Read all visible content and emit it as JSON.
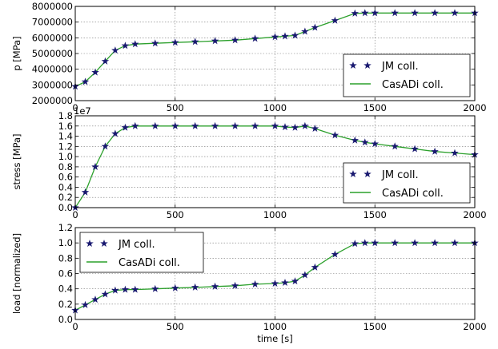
{
  "colors": {
    "marker": "#191970",
    "line": "#2ca02c",
    "grid": "#777777",
    "frame": "#000000"
  },
  "chart_data": [
    {
      "type": "line",
      "ylabel": "p [MPa]",
      "xlabel": "",
      "xlim": [
        0,
        2000
      ],
      "ylim": [
        2000000,
        8000000
      ],
      "xticks": [
        0,
        500,
        1000,
        1500,
        2000
      ],
      "yticks": [
        2000000,
        3000000,
        4000000,
        5000000,
        6000000,
        7000000,
        8000000
      ],
      "ytick_labels": [
        "2000000",
        "3000000",
        "4000000",
        "5000000",
        "6000000",
        "7000000",
        "8000000"
      ],
      "offset_text": "",
      "grid": true,
      "legend": "right",
      "x": [
        0,
        50,
        100,
        150,
        200,
        250,
        300,
        400,
        500,
        600,
        700,
        800,
        900,
        1000,
        1050,
        1100,
        1150,
        1200,
        1300,
        1400,
        1450,
        1500,
        1600,
        1700,
        1800,
        1900,
        2000
      ],
      "series": [
        {
          "name": "JM coll.",
          "style": "markers",
          "values": [
            2900000,
            3200000,
            3800000,
            4500000,
            5200000,
            5500000,
            5600000,
            5650000,
            5700000,
            5750000,
            5800000,
            5850000,
            5950000,
            6050000,
            6100000,
            6150000,
            6400000,
            6650000,
            7100000,
            7550000,
            7580000,
            7580000,
            7580000,
            7580000,
            7580000,
            7580000,
            7580000
          ]
        },
        {
          "name": "CasADi coll.",
          "style": "line",
          "values": [
            2900000,
            3200000,
            3800000,
            4500000,
            5200000,
            5500000,
            5600000,
            5650000,
            5700000,
            5750000,
            5800000,
            5850000,
            5950000,
            6050000,
            6100000,
            6150000,
            6400000,
            6650000,
            7100000,
            7550000,
            7580000,
            7580000,
            7580000,
            7580000,
            7580000,
            7580000,
            7580000
          ]
        }
      ]
    },
    {
      "type": "line",
      "ylabel": "stress [MPa]",
      "xlabel": "",
      "xlim": [
        0,
        2000
      ],
      "ylim": [
        0,
        1.8
      ],
      "xticks": [
        0,
        500,
        1000,
        1500,
        2000
      ],
      "yticks": [
        0,
        0.2,
        0.4,
        0.6,
        0.8,
        1.0,
        1.2,
        1.4,
        1.6,
        1.8
      ],
      "ytick_labels": [
        "0.0",
        "0.2",
        "0.4",
        "0.6",
        "0.8",
        "1.0",
        "1.2",
        "1.4",
        "1.6",
        "1.8"
      ],
      "offset_text": "1e7",
      "grid": true,
      "legend": "lower-right",
      "x": [
        0,
        50,
        100,
        150,
        200,
        250,
        300,
        400,
        500,
        600,
        700,
        800,
        900,
        1000,
        1050,
        1100,
        1150,
        1200,
        1300,
        1400,
        1450,
        1500,
        1600,
        1700,
        1800,
        1900,
        2000
      ],
      "series": [
        {
          "name": "JM coll.",
          "style": "markers",
          "values": [
            0.0,
            0.3,
            0.8,
            1.2,
            1.45,
            1.57,
            1.6,
            1.6,
            1.6,
            1.6,
            1.6,
            1.6,
            1.6,
            1.6,
            1.58,
            1.57,
            1.6,
            1.55,
            1.42,
            1.32,
            1.28,
            1.25,
            1.2,
            1.15,
            1.1,
            1.07,
            1.04
          ]
        },
        {
          "name": "CasADi coll.",
          "style": "line",
          "values": [
            0.0,
            0.3,
            0.8,
            1.2,
            1.45,
            1.57,
            1.6,
            1.6,
            1.6,
            1.6,
            1.6,
            1.6,
            1.6,
            1.6,
            1.58,
            1.57,
            1.6,
            1.55,
            1.42,
            1.32,
            1.28,
            1.25,
            1.2,
            1.15,
            1.1,
            1.07,
            1.04
          ]
        }
      ]
    },
    {
      "type": "line",
      "ylabel": "load [normalized]",
      "xlabel": "time [s]",
      "xlim": [
        0,
        2000
      ],
      "ylim": [
        0,
        1.2
      ],
      "xticks": [
        0,
        500,
        1000,
        1500,
        2000
      ],
      "yticks": [
        0,
        0.2,
        0.4,
        0.6,
        0.8,
        1.0,
        1.2
      ],
      "ytick_labels": [
        "0.0",
        "0.2",
        "0.4",
        "0.6",
        "0.8",
        "1.0",
        "1.2"
      ],
      "offset_text": "",
      "grid": true,
      "legend": "upper-left",
      "x": [
        0,
        50,
        100,
        150,
        200,
        250,
        300,
        400,
        500,
        600,
        700,
        800,
        900,
        1000,
        1050,
        1100,
        1150,
        1200,
        1300,
        1400,
        1450,
        1500,
        1600,
        1700,
        1800,
        1900,
        2000
      ],
      "series": [
        {
          "name": "JM coll.",
          "style": "markers",
          "values": [
            0.12,
            0.19,
            0.26,
            0.33,
            0.38,
            0.39,
            0.39,
            0.4,
            0.41,
            0.42,
            0.43,
            0.44,
            0.46,
            0.47,
            0.48,
            0.5,
            0.58,
            0.68,
            0.85,
            0.99,
            1.0,
            1.0,
            1.0,
            1.0,
            1.0,
            1.0,
            1.0
          ]
        },
        {
          "name": "CasADi coll.",
          "style": "line",
          "values": [
            0.12,
            0.19,
            0.26,
            0.33,
            0.38,
            0.39,
            0.39,
            0.4,
            0.41,
            0.42,
            0.43,
            0.44,
            0.46,
            0.47,
            0.48,
            0.5,
            0.58,
            0.68,
            0.85,
            0.99,
            1.0,
            1.0,
            1.0,
            1.0,
            1.0,
            1.0,
            1.0
          ]
        }
      ]
    }
  ]
}
